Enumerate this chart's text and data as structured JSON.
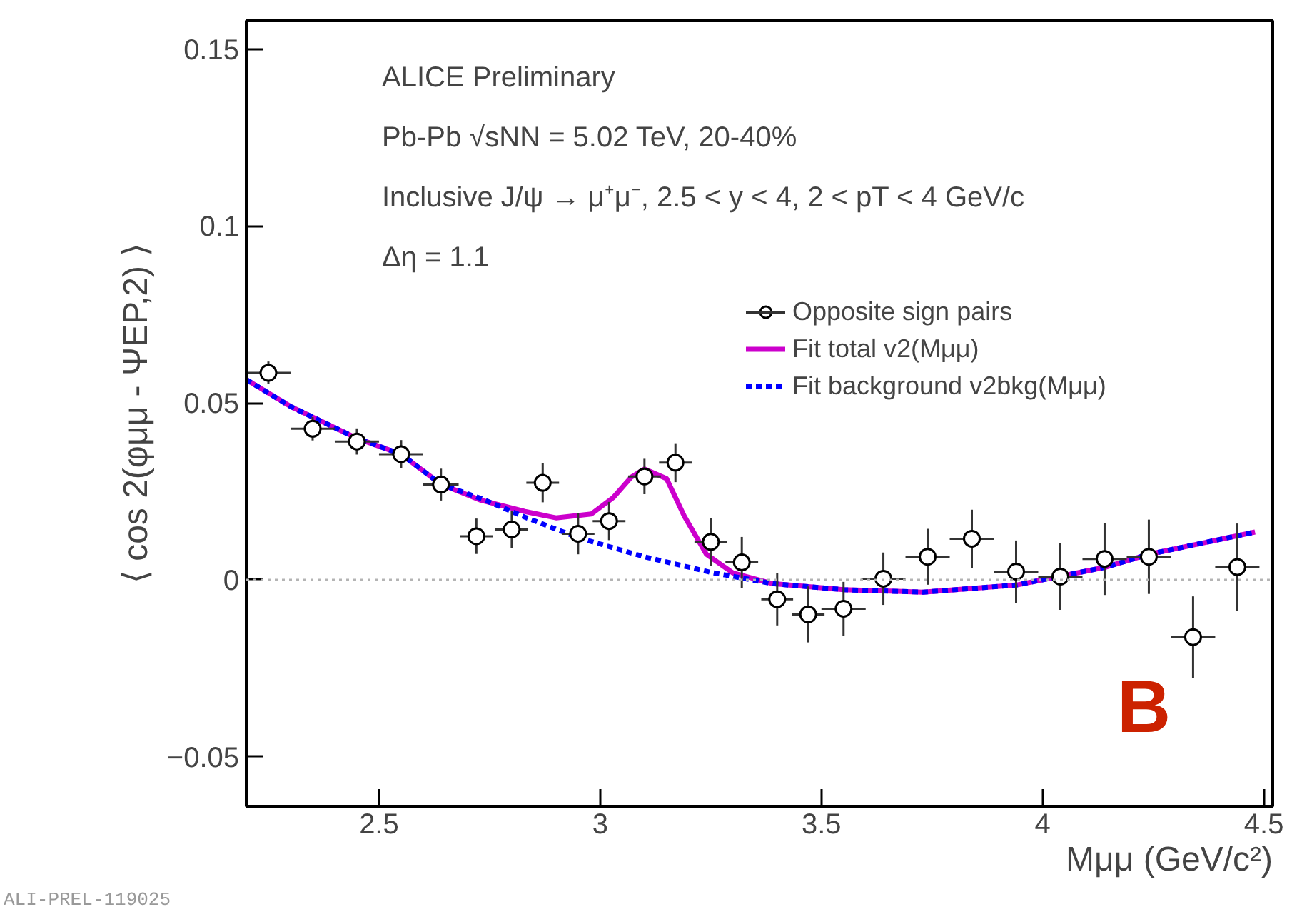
{
  "chart_data": {
    "type": "scatter",
    "xlabel": "Mμμ (GeV/c²)",
    "ylabel": "⟨ cos 2(φμμ - ΨEP,2) ⟩",
    "annotations": [
      "ALICE Preliminary",
      "Pb-Pb √sNN = 5.02 TeV, 20-40%",
      "Inclusive J/ψ → μ⁺μ⁻,  2.5 < y < 4,  2 < pT < 4 GeV/c",
      "Δη = 1.1",
      "B",
      "ALI-PREL-119025"
    ],
    "xlim": [
      2.2,
      4.52
    ],
    "ylim": [
      -0.064,
      0.158
    ],
    "xticks": [
      2.5,
      3,
      3.5,
      4,
      4.5
    ],
    "yticks": [
      {
        "value": -0.05,
        "label": "−0.05"
      },
      0,
      0.05,
      0.1,
      0.15
    ],
    "grid": false,
    "legend": "top right",
    "ref_lines": [
      {
        "axis": "y",
        "value": 0,
        "label": null,
        "color": "#b4b4b4",
        "line_style": "dotted"
      }
    ],
    "series": [
      {
        "name": "Opposite sign pairs",
        "color": "#000000",
        "marker": "circle",
        "x": [
          2.25,
          2.35,
          2.45,
          2.55,
          2.64,
          2.72,
          2.8,
          2.87,
          2.95,
          3.02,
          3.1,
          3.17,
          3.25,
          3.32,
          3.4,
          3.47,
          3.55,
          3.64,
          3.74,
          3.84,
          3.94,
          4.04,
          4.14,
          4.24,
          4.34,
          4.44
        ],
        "values": [
          0.0585,
          0.0427,
          0.0391,
          0.0355,
          0.0269,
          0.0123,
          0.0142,
          0.0274,
          0.013,
          0.0166,
          0.0292,
          0.0331,
          0.0107,
          0.0049,
          -0.0055,
          -0.0098,
          -0.0082,
          0.0003,
          0.0065,
          0.0116,
          0.0023,
          0.0009,
          0.0059,
          0.0065,
          -0.0162,
          0.0036
        ],
        "errors": [
          0.0032,
          0.0033,
          0.0037,
          0.004,
          0.0045,
          0.005,
          0.0052,
          0.0055,
          0.0058,
          0.0054,
          0.005,
          0.0055,
          0.0067,
          0.0072,
          0.0074,
          0.0079,
          0.0076,
          0.0074,
          0.0079,
          0.0082,
          0.0088,
          0.0094,
          0.0102,
          0.0105,
          0.0115,
          0.0123
        ],
        "xerrors": [
          0.05,
          0.05,
          0.05,
          0.05,
          0.04,
          0.037,
          0.037,
          0.037,
          0.037,
          0.037,
          0.037,
          0.037,
          0.037,
          0.037,
          0.036,
          0.037,
          0.05,
          0.05,
          0.05,
          0.05,
          0.05,
          0.05,
          0.05,
          0.05,
          0.05,
          0.05
        ]
      },
      {
        "name": "Fit total v2(Mμμ)",
        "type": "line",
        "color": "#cc00cc",
        "line_style": "solid",
        "x": [
          2.2,
          2.3,
          2.45,
          2.55,
          2.64,
          2.73,
          2.83,
          2.9,
          2.98,
          3.03,
          3.07,
          3.1,
          3.15,
          3.19,
          3.24,
          3.3,
          3.39,
          3.55,
          3.73,
          3.94,
          4.14,
          4.24,
          4.37,
          4.48
        ],
        "values": [
          0.0566,
          0.049,
          0.04,
          0.0355,
          0.027,
          0.0225,
          0.0193,
          0.0175,
          0.0186,
          0.0233,
          0.029,
          0.0313,
          0.0286,
          0.018,
          0.0072,
          0.0019,
          -0.0011,
          -0.0028,
          -0.0035,
          -0.0015,
          0.0035,
          0.0072,
          0.0106,
          0.0135
        ]
      },
      {
        "name": "Fit background v2bkg(Mμμ)",
        "type": "line",
        "color": "#0000ff",
        "line_style": "dashed",
        "x": [
          2.2,
          2.3,
          2.45,
          2.55,
          2.64,
          2.73,
          2.83,
          2.95,
          3.1,
          3.25,
          3.39,
          3.55,
          3.73,
          3.94,
          4.14,
          4.24,
          4.37,
          4.48
        ],
        "values": [
          0.0566,
          0.049,
          0.04,
          0.0355,
          0.027,
          0.023,
          0.0177,
          0.0119,
          0.0065,
          0.0021,
          -0.0011,
          -0.0028,
          -0.0035,
          -0.0015,
          0.0035,
          0.0072,
          0.0106,
          0.0135
        ]
      }
    ]
  }
}
